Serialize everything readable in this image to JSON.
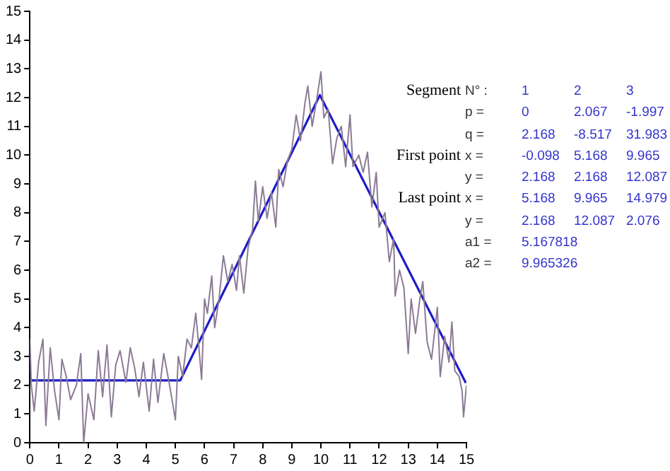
{
  "chart_data": {
    "type": "line",
    "xlim": [
      0,
      15
    ],
    "xticks": [
      0,
      1,
      2,
      3,
      4,
      5,
      6,
      7,
      8,
      9,
      10,
      11,
      12,
      13,
      14,
      15
    ],
    "ylim": [
      0,
      15
    ],
    "yticks": [
      0,
      1,
      2,
      3,
      4,
      5,
      6,
      7,
      8,
      9,
      10,
      11,
      12,
      13,
      14,
      15
    ],
    "grid": false,
    "legend": false,
    "marker": "none",
    "series": [
      {
        "color": "#8c7b95",
        "x": [
          0,
          0.05,
          0.15,
          0.3,
          0.45,
          0.55,
          0.7,
          0.85,
          1.0,
          1.1,
          1.25,
          1.4,
          1.6,
          1.75,
          1.85,
          2.0,
          2.2,
          2.35,
          2.5,
          2.65,
          2.8,
          2.95,
          3.1,
          3.3,
          3.45,
          3.6,
          3.75,
          3.9,
          4.1,
          4.25,
          4.4,
          4.6,
          4.8,
          5.0,
          5.1,
          5.25,
          5.4,
          5.55,
          5.7,
          5.8,
          5.9,
          6.0,
          6.1,
          6.25,
          6.35,
          6.5,
          6.65,
          6.8,
          6.95,
          7.1,
          7.2,
          7.35,
          7.5,
          7.65,
          7.75,
          7.85,
          8.0,
          8.15,
          8.3,
          8.45,
          8.55,
          8.7,
          8.85,
          9.0,
          9.15,
          9.3,
          9.45,
          9.55,
          9.7,
          9.85,
          10.0,
          10.1,
          10.25,
          10.4,
          10.55,
          10.7,
          10.85,
          11.0,
          11.1,
          11.3,
          11.45,
          11.6,
          11.75,
          11.9,
          12.0,
          12.2,
          12.35,
          12.5,
          12.55,
          12.7,
          12.85,
          13.0,
          13.1,
          13.25,
          13.4,
          13.5,
          13.65,
          13.8,
          14.0,
          14.1,
          14.25,
          14.4,
          14.5,
          14.6,
          14.75,
          14.85,
          14.9,
          15.0
        ],
        "values": [
          3.6,
          2.0,
          1.1,
          2.8,
          3.6,
          0.6,
          3.3,
          1.8,
          0.8,
          2.9,
          2.3,
          1.5,
          2.0,
          3.1,
          0.0,
          1.7,
          0.8,
          3.2,
          1.6,
          3.4,
          0.9,
          2.7,
          3.2,
          2.1,
          3.3,
          2.6,
          1.6,
          2.8,
          1.1,
          2.9,
          1.4,
          3.1,
          2.0,
          0.8,
          3.0,
          2.3,
          3.6,
          3.3,
          4.5,
          3.4,
          2.2,
          5.0,
          4.5,
          5.8,
          4.0,
          5.0,
          6.5,
          5.6,
          6.2,
          5.3,
          6.5,
          5.2,
          6.8,
          7.4,
          9.1,
          7.7,
          8.9,
          7.8,
          8.7,
          7.5,
          9.5,
          8.9,
          9.8,
          10.2,
          11.4,
          10.5,
          11.8,
          12.4,
          11.0,
          11.9,
          12.9,
          11.3,
          11.6,
          9.7,
          10.6,
          11.0,
          9.6,
          11.4,
          9.6,
          10.0,
          9.4,
          10.1,
          8.2,
          9.4,
          7.5,
          8.0,
          6.3,
          7.1,
          5.1,
          6.0,
          5.4,
          3.1,
          5.0,
          3.8,
          5.0,
          5.6,
          3.5,
          2.9,
          4.7,
          2.3,
          3.7,
          2.8,
          4.2,
          2.5,
          2.3,
          1.8,
          0.9,
          2.0
        ]
      },
      {
        "color": "#1c1cc8",
        "x": [
          0,
          5.168,
          9.965,
          14.979
        ],
        "values": [
          2.168,
          2.168,
          12.087,
          2.076
        ]
      }
    ],
    "annotations": [
      "Segment\tN° :\t1\t2\t3",
      "\tp =\t0\t2.067\t-1.997",
      "\tq =\t2.168\t-8.517\t31.983",
      "First point\tx =\t-0.098\t5.168\t9.965",
      "\ty =\t2.168\t2.168\t12.087",
      "Last point\tx =\t5.168\t9.965\t14.979",
      "\ty =\t2.168\t12.087\t2.076",
      "\ta1 =\t5.167818",
      "\ta2 =\t9.965326"
    ]
  }
}
